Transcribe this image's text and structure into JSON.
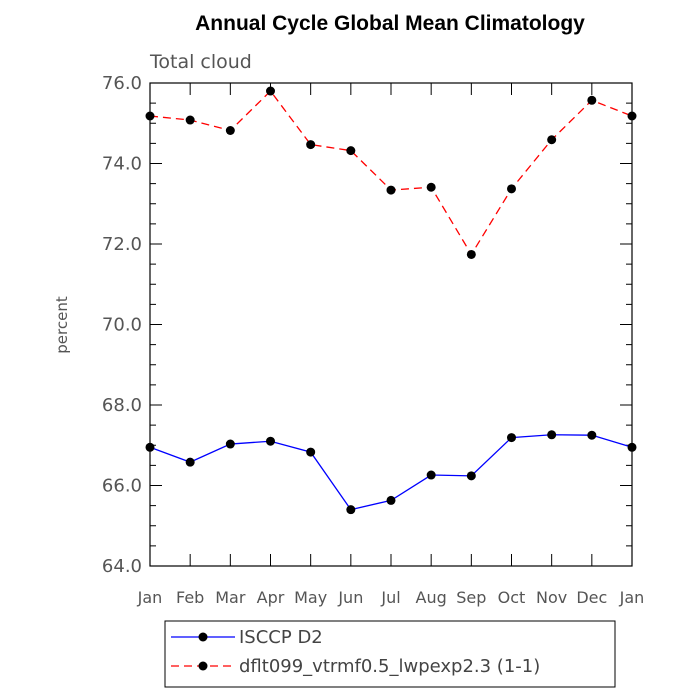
{
  "chart_data": {
    "type": "line",
    "title": "Annual Cycle Global Mean Climatology",
    "subtitle": "Total cloud",
    "xlabel": "",
    "ylabel": "percent",
    "categories": [
      "Jan",
      "Feb",
      "Mar",
      "Apr",
      "May",
      "Jun",
      "Jul",
      "Aug",
      "Sep",
      "Oct",
      "Nov",
      "Dec",
      "Jan"
    ],
    "ylim": [
      64.0,
      76.0
    ],
    "yticks": [
      "64.0",
      "66.0",
      "68.0",
      "70.0",
      "72.0",
      "74.0",
      "76.0"
    ],
    "legend_position": "bottom",
    "grid": false,
    "series": [
      {
        "name": "ISCCP D2",
        "color": "#0000ff",
        "style": "solid",
        "values": [
          66.95,
          66.58,
          67.03,
          67.1,
          66.83,
          65.4,
          65.63,
          66.26,
          66.24,
          67.19,
          67.26,
          67.25,
          66.95
        ]
      },
      {
        "name": "dflt099_vtrmf0.5_lwpexp2.3 (1-1)",
        "color": "#ff0000",
        "style": "dashed",
        "values": [
          75.18,
          75.08,
          74.82,
          75.8,
          74.47,
          74.32,
          73.34,
          73.41,
          71.74,
          73.37,
          74.59,
          75.57,
          75.18
        ]
      }
    ]
  }
}
